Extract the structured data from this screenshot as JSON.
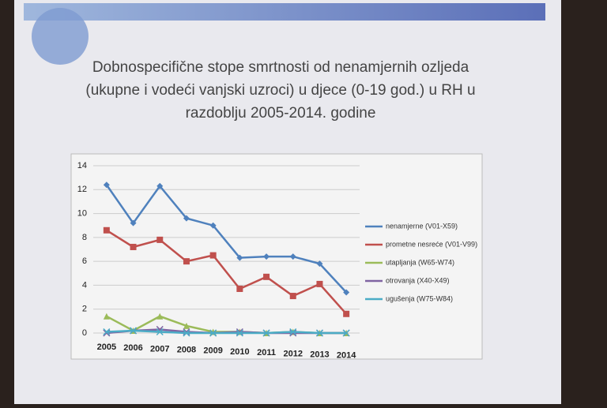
{
  "chart_data": {
    "type": "line",
    "title": [
      "Dobnospecifične stope smrtnosti od nenamjernih ozljeda",
      "(ukupne i vodeći vanjski uzroci) u djece (0-19 god.) u RH u",
      "razdoblju 2005-2014. godine"
    ],
    "categories": [
      "2005",
      "2006",
      "2007",
      "2008",
      "2009",
      "2010",
      "2011",
      "2012",
      "2013",
      "2014"
    ],
    "series": [
      {
        "name": "nenamjerne (V01-X59)",
        "color": "#4f81bd",
        "values": [
          12.4,
          9.2,
          12.3,
          9.6,
          9.0,
          6.3,
          6.4,
          6.4,
          5.8,
          3.4
        ]
      },
      {
        "name": "prometne nesreće (V01-V99)",
        "color": "#c0504d",
        "values": [
          8.6,
          7.2,
          7.8,
          6.0,
          6.5,
          3.7,
          4.7,
          3.1,
          4.1,
          1.6
        ]
      },
      {
        "name": "utapljanja (W65-W74)",
        "color": "#9bbb59",
        "values": [
          1.4,
          0.2,
          1.4,
          0.6,
          0.1,
          0.1,
          0.0,
          0.1,
          0.0,
          0.0
        ]
      },
      {
        "name": "otrovanja (X40-X49)",
        "color": "#8064a2",
        "values": [
          0.0,
          0.2,
          0.3,
          0.1,
          0.0,
          0.1,
          0.0,
          0.0,
          0.0,
          0.0
        ]
      },
      {
        "name": "ugušenja (W75-W84)",
        "color": "#4bacc6",
        "values": [
          0.1,
          0.2,
          0.1,
          0.0,
          0.0,
          0.0,
          0.0,
          0.1,
          0.0,
          0.0
        ]
      }
    ],
    "ylim": [
      0,
      14
    ],
    "yticks": [
      0,
      2,
      4,
      6,
      8,
      10,
      12,
      14
    ],
    "grid": true,
    "legend": "right"
  }
}
